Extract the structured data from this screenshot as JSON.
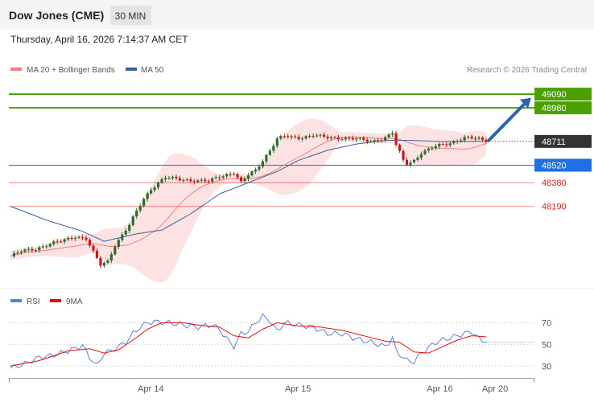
{
  "header": {
    "instrument": "Dow Jones (CME)",
    "timeframe": "30 MIN",
    "datetime": "Thursday, April 16, 2026 7:14:37 AM CET"
  },
  "legend": {
    "bollinger_label": "MA 20 + Bollinger Bands",
    "ma50_label": "MA 50",
    "copyright": "Research © 2026 Trading Central"
  },
  "rsi_legend": {
    "rsi_label": "RSI",
    "ma9_label": "9MA"
  },
  "colors": {
    "resistance": "#4aa000",
    "support_key": "#1f6fe5",
    "support": "#e02020",
    "candle_up": "#2e6b2e",
    "candle_down": "#c41a1a",
    "ma20": "#f08080",
    "band_fill": "#fbd8d8",
    "ma50": "#3a5f9e",
    "rsi": "#5a7fd6",
    "rsi_ma": "#e01010",
    "arrow": "#2d64b0"
  },
  "chart_data": [
    {
      "type": "candlestick",
      "title": "Dow Jones (CME)",
      "timeframe": "30 MIN",
      "ylim": [
        47550,
        49200
      ],
      "last_price": 48711,
      "resistance_levels": [
        {
          "label": "49090",
          "value": 49090
        },
        {
          "label": "48980",
          "value": 48980
        }
      ],
      "support_levels": [
        {
          "label": "48520",
          "value": 48520,
          "key": true
        },
        {
          "label": "48380",
          "value": 48380
        },
        {
          "label": "48190",
          "value": 48190
        }
      ],
      "last_label": "48711",
      "projection": {
        "from": 48711,
        "to": 49060
      },
      "x_ticks": [
        {
          "label": "Apr 14",
          "x": 0.27
        },
        {
          "label": "Apr 15",
          "x": 0.55
        },
        {
          "label": "Apr 16",
          "x": 0.82
        },
        {
          "label": "Apr 20",
          "x": 0.925
        }
      ],
      "anchors": [
        [
          0,
          47790
        ],
        [
          3,
          47830
        ],
        [
          7,
          47850
        ],
        [
          10,
          47880
        ],
        [
          14,
          47910
        ],
        [
          18,
          47950
        ],
        [
          21,
          47930
        ],
        [
          23,
          47820
        ],
        [
          25,
          47720
        ],
        [
          27,
          47750
        ],
        [
          29,
          47880
        ],
        [
          31,
          47960
        ],
        [
          33,
          48040
        ],
        [
          35,
          48150
        ],
        [
          37,
          48250
        ],
        [
          39,
          48330
        ],
        [
          41,
          48380
        ],
        [
          43,
          48420
        ],
        [
          46,
          48410
        ],
        [
          50,
          48400
        ],
        [
          55,
          48390
        ],
        [
          58,
          48430
        ],
        [
          62,
          48460
        ],
        [
          64,
          48380
        ],
        [
          66,
          48440
        ],
        [
          68,
          48480
        ],
        [
          70,
          48560
        ],
        [
          72,
          48640
        ],
        [
          74,
          48730
        ],
        [
          76,
          48750
        ],
        [
          80,
          48740
        ],
        [
          84,
          48760
        ],
        [
          88,
          48740
        ],
        [
          92,
          48740
        ],
        [
          96,
          48730
        ],
        [
          100,
          48710
        ],
        [
          104,
          48740
        ],
        [
          106,
          48780
        ],
        [
          107,
          48680
        ],
        [
          109,
          48560
        ],
        [
          110,
          48530
        ],
        [
          112,
          48560
        ],
        [
          114,
          48620
        ],
        [
          118,
          48670
        ],
        [
          122,
          48700
        ],
        [
          126,
          48740
        ],
        [
          130,
          48730
        ],
        [
          132,
          48711
        ]
      ],
      "ma50_anchors": [
        [
          0,
          48190
        ],
        [
          10,
          48080
        ],
        [
          20,
          47990
        ],
        [
          26,
          47910
        ],
        [
          35,
          47970
        ],
        [
          42,
          48000
        ],
        [
          50,
          48130
        ],
        [
          58,
          48290
        ],
        [
          66,
          48380
        ],
        [
          74,
          48470
        ],
        [
          80,
          48560
        ],
        [
          88,
          48640
        ],
        [
          96,
          48690
        ],
        [
          104,
          48720
        ],
        [
          110,
          48720
        ],
        [
          120,
          48710
        ],
        [
          132,
          48711
        ]
      ]
    },
    {
      "type": "line",
      "title": "RSI",
      "ylim": [
        25,
        80
      ],
      "y_ticks": [
        70,
        50,
        30
      ],
      "series": [
        {
          "name": "RSI",
          "anchors": [
            [
              0,
              28
            ],
            [
              4,
              32
            ],
            [
              8,
              38
            ],
            [
              12,
              40
            ],
            [
              16,
              44
            ],
            [
              20,
              49
            ],
            [
              22,
              38
            ],
            [
              24,
              30
            ],
            [
              26,
              42
            ],
            [
              28,
              44
            ],
            [
              30,
              48
            ],
            [
              32,
              52
            ],
            [
              34,
              60
            ],
            [
              36,
              66
            ],
            [
              38,
              70
            ],
            [
              40,
              71
            ],
            [
              44,
              70
            ],
            [
              48,
              68
            ],
            [
              52,
              66
            ],
            [
              56,
              68
            ],
            [
              58,
              64
            ],
            [
              60,
              55
            ],
            [
              62,
              48
            ],
            [
              64,
              60
            ],
            [
              66,
              62
            ],
            [
              68,
              70
            ],
            [
              70,
              76
            ],
            [
              72,
              72
            ],
            [
              74,
              62
            ],
            [
              76,
              70
            ],
            [
              80,
              68
            ],
            [
              84,
              66
            ],
            [
              88,
              60
            ],
            [
              92,
              60
            ],
            [
              96,
              55
            ],
            [
              100,
              52
            ],
            [
              104,
              48
            ],
            [
              106,
              56
            ],
            [
              107,
              44
            ],
            [
              110,
              35
            ],
            [
              112,
              34
            ],
            [
              114,
              42
            ],
            [
              118,
              52
            ],
            [
              122,
              56
            ],
            [
              126,
              60
            ],
            [
              128,
              62
            ],
            [
              130,
              55
            ],
            [
              132,
              52
            ]
          ]
        },
        {
          "name": "9MA",
          "anchors": [
            [
              0,
              30
            ],
            [
              8,
              35
            ],
            [
              16,
              44
            ],
            [
              22,
              46
            ],
            [
              26,
              42
            ],
            [
              30,
              45
            ],
            [
              34,
              54
            ],
            [
              38,
              64
            ],
            [
              42,
              70
            ],
            [
              48,
              70
            ],
            [
              54,
              67
            ],
            [
              58,
              66
            ],
            [
              62,
              58
            ],
            [
              66,
              56
            ],
            [
              70,
              64
            ],
            [
              74,
              70
            ],
            [
              80,
              67
            ],
            [
              86,
              66
            ],
            [
              92,
              63
            ],
            [
              98,
              58
            ],
            [
              104,
              53
            ],
            [
              108,
              52
            ],
            [
              112,
              43
            ],
            [
              116,
              42
            ],
            [
              120,
              48
            ],
            [
              124,
              54
            ],
            [
              128,
              58
            ],
            [
              132,
              57
            ]
          ]
        }
      ]
    }
  ]
}
